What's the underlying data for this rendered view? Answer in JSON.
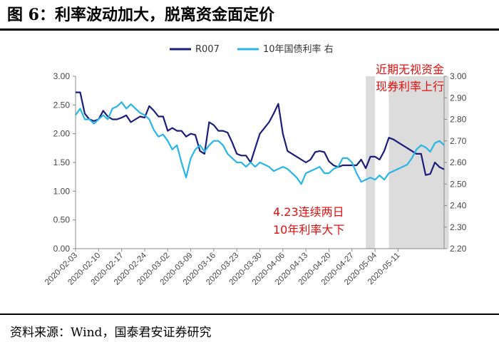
{
  "title": "图 6：利率波动加大，脱离资金面定价",
  "source": "资料来源：Wind，国泰君安证券研究",
  "chart_data": {
    "type": "line",
    "x_labels": [
      "2020-02-03",
      "2020-02-10",
      "2020-02-17",
      "2020-02-24",
      "2020-03-02",
      "2020-03-09",
      "2020-03-16",
      "2020-03-23",
      "2020-03-30",
      "2020-04-06",
      "2020-04-13",
      "2020-04-20",
      "2020-04-27",
      "2020-05-04",
      "2020-05-11"
    ],
    "left_axis": {
      "ticks": [
        "0.00",
        "0.50",
        "1.00",
        "1.50",
        "2.00",
        "2.50",
        "3.00"
      ],
      "ylim": [
        0,
        3.0
      ]
    },
    "right_axis": {
      "ticks": [
        "2.20",
        "2.30",
        "2.40",
        "2.50",
        "2.60",
        "2.70",
        "2.80",
        "2.90",
        "3.00"
      ],
      "ylim": [
        2.2,
        3.0
      ]
    },
    "series": [
      {
        "name": "R007",
        "axis": "left",
        "color": "#1c1c7a",
        "values": [
          2.72,
          2.72,
          2.35,
          2.25,
          2.22,
          2.25,
          2.4,
          2.3,
          2.25,
          2.25,
          2.28,
          2.32,
          2.2,
          2.25,
          2.3,
          2.28,
          2.48,
          2.4,
          2.3,
          2.3,
          2.05,
          2.1,
          2.05,
          2.05,
          1.95,
          2.0,
          1.98,
          1.7,
          1.65,
          2.2,
          2.15,
          2.05,
          2.05,
          2.02,
          1.85,
          1.65,
          1.62,
          1.62,
          1.5,
          1.75,
          2.0,
          2.1,
          2.2,
          2.35,
          2.52,
          2.0,
          1.7,
          1.65,
          1.6,
          1.55,
          1.5,
          1.55,
          1.68,
          1.7,
          1.68,
          1.52,
          1.45,
          1.42,
          1.45,
          1.45,
          1.45,
          1.45,
          1.55,
          1.4,
          1.6,
          1.6,
          1.55,
          1.7,
          1.93,
          1.9,
          1.85,
          1.8,
          1.75,
          1.7,
          1.65,
          1.65,
          1.28,
          1.3,
          1.5,
          1.42,
          1.38
        ]
      },
      {
        "name": "10年国债利率 右",
        "axis": "right",
        "color": "#29b5e6",
        "values": [
          2.82,
          2.85,
          2.8,
          2.8,
          2.78,
          2.8,
          2.82,
          2.8,
          2.85,
          2.86,
          2.88,
          2.85,
          2.87,
          2.85,
          2.83,
          2.82,
          2.8,
          2.75,
          2.72,
          2.73,
          2.7,
          2.66,
          2.68,
          2.6,
          2.53,
          2.62,
          2.66,
          2.68,
          2.65,
          2.68,
          2.7,
          2.7,
          2.68,
          2.64,
          2.62,
          2.6,
          2.6,
          2.58,
          2.6,
          2.58,
          2.6,
          2.59,
          2.58,
          2.56,
          2.57,
          2.58,
          2.57,
          2.55,
          2.53,
          2.5,
          2.55,
          2.56,
          2.57,
          2.58,
          2.55,
          2.55,
          2.57,
          2.58,
          2.62,
          2.62,
          2.6,
          2.55,
          2.51,
          2.52,
          2.53,
          2.52,
          2.54,
          2.52,
          2.55,
          2.56,
          2.57,
          2.58,
          2.59,
          2.62,
          2.66,
          2.68,
          2.67,
          2.65,
          2.69,
          2.7,
          2.68
        ]
      }
    ],
    "shaded_regions": [
      {
        "from": 63,
        "to": 65
      },
      {
        "from": 68,
        "to": 81
      }
    ],
    "annotations": [
      {
        "lines": [
          "近期无视资金",
          "现券利率上行"
        ]
      },
      {
        "lines": [
          "4.23连续两日",
          "10年利率大下"
        ]
      }
    ]
  }
}
